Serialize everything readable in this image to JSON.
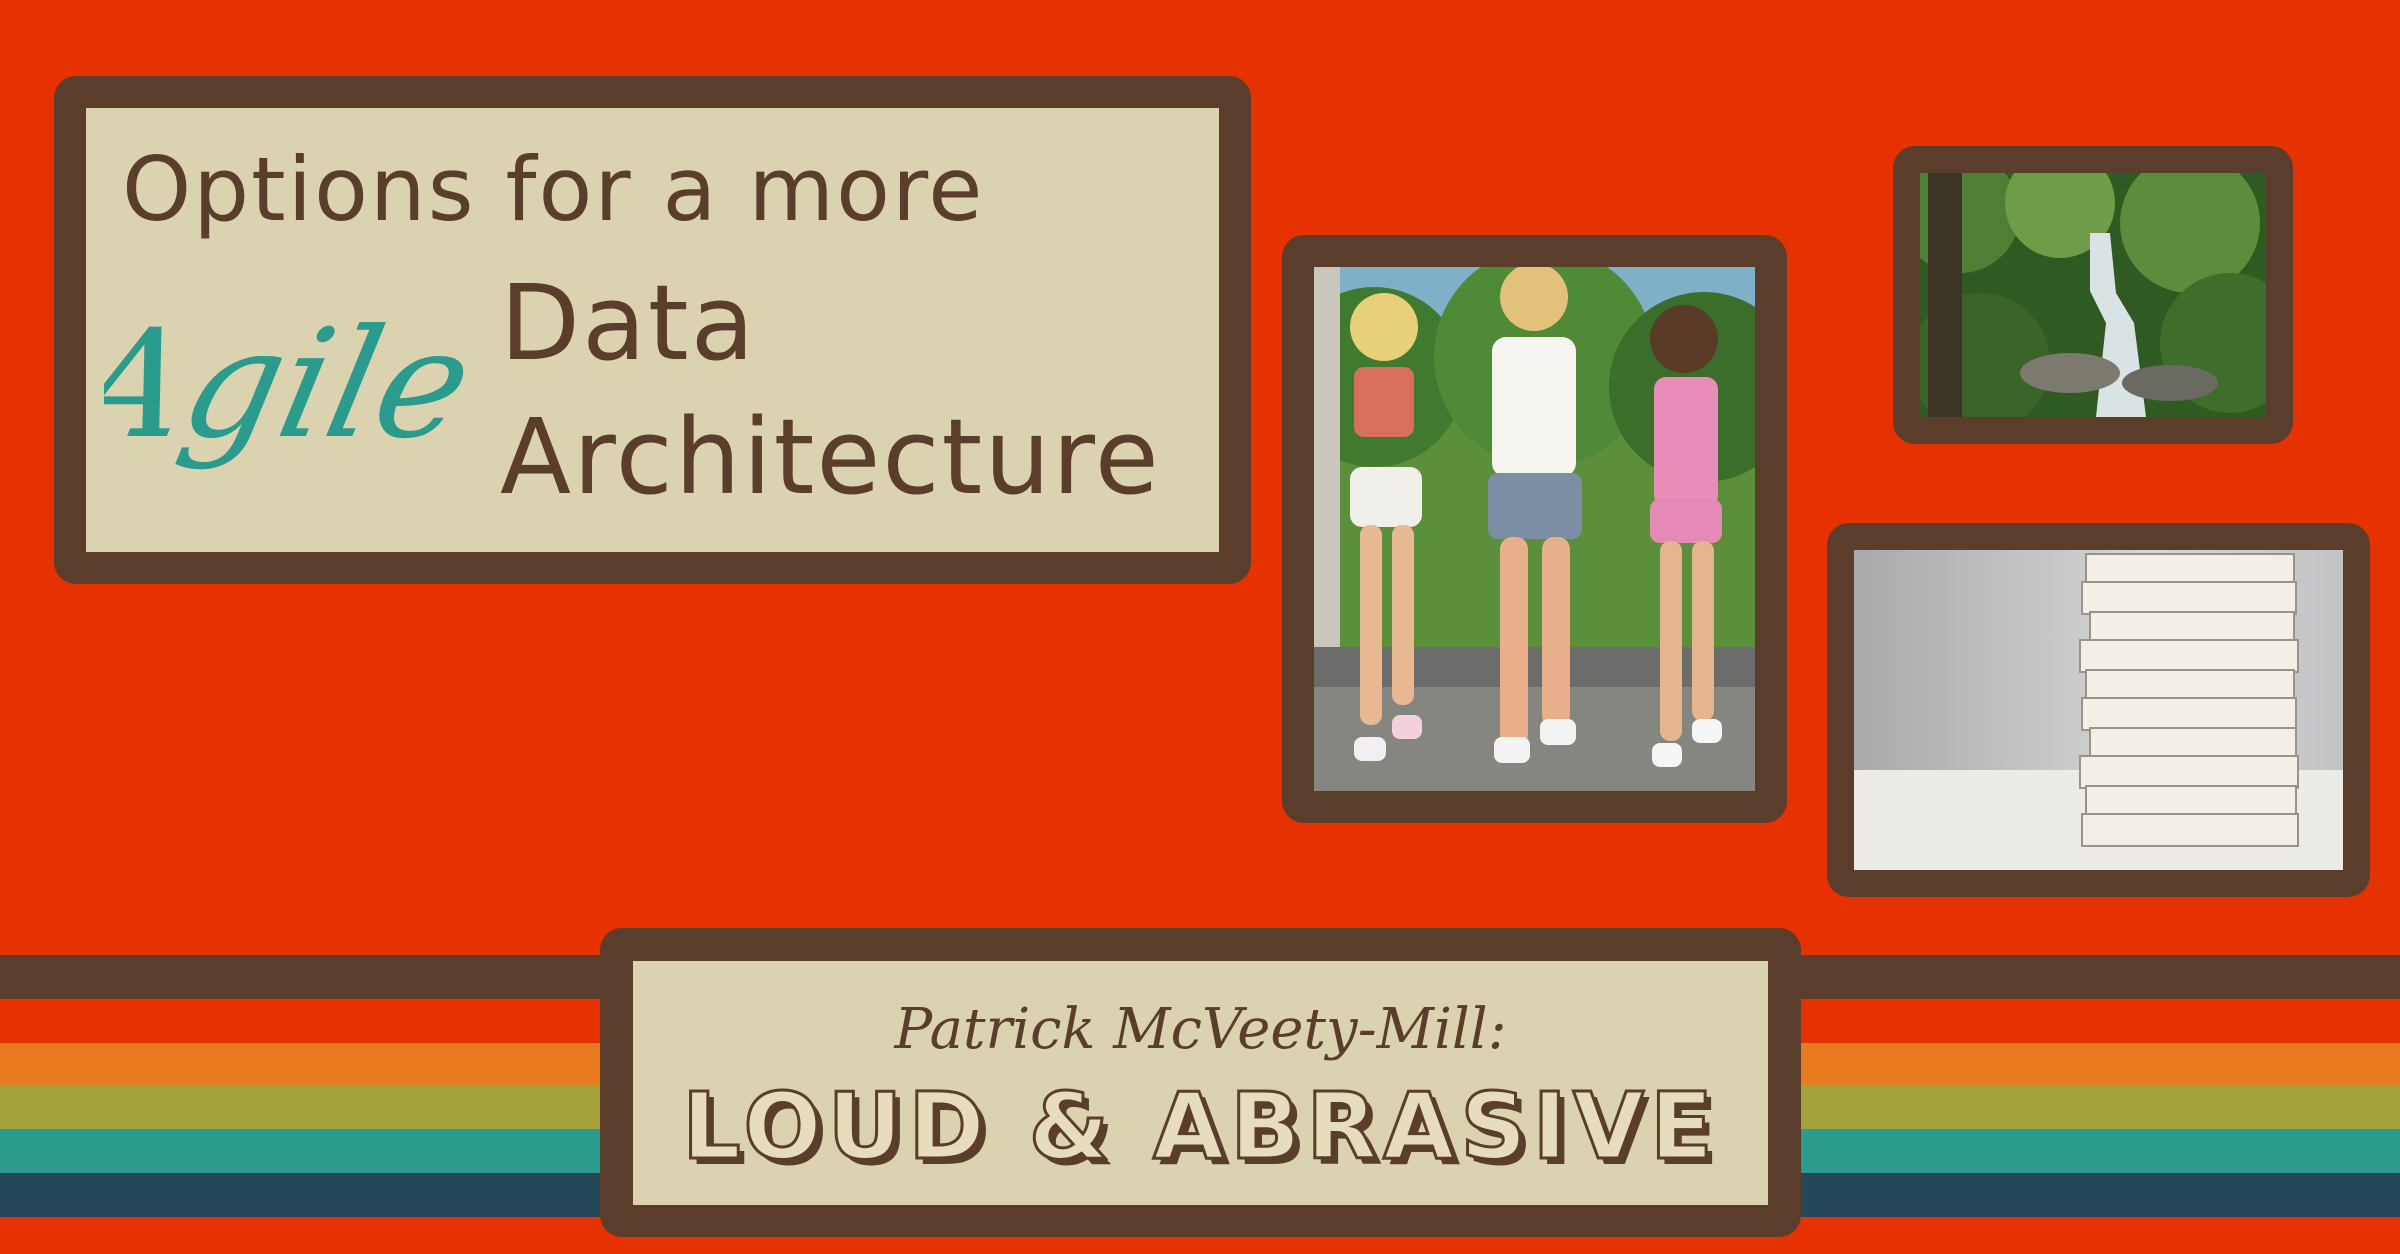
{
  "title": {
    "line1": "Options for a more",
    "script_word": "Agile",
    "line2": "Data",
    "line3": "Architecture"
  },
  "footer": {
    "presenter": "Patrick McVeety-Mill:",
    "tagline": "LOUD & ABRASIVE"
  },
  "images": [
    {
      "name": "retro-joggers-photo"
    },
    {
      "name": "forest-waterfall-photo"
    },
    {
      "name": "paper-stack-photo"
    }
  ],
  "colors": {
    "background": "#e53200",
    "brown": "#5a3e2b",
    "cream": "#dbd2b0",
    "teal": "#2a9b8c",
    "stripes": [
      "#5a3e2b",
      "#e53200",
      "#e87a1f",
      "#a3a23b",
      "#2a9b8c",
      "#24475a"
    ]
  }
}
